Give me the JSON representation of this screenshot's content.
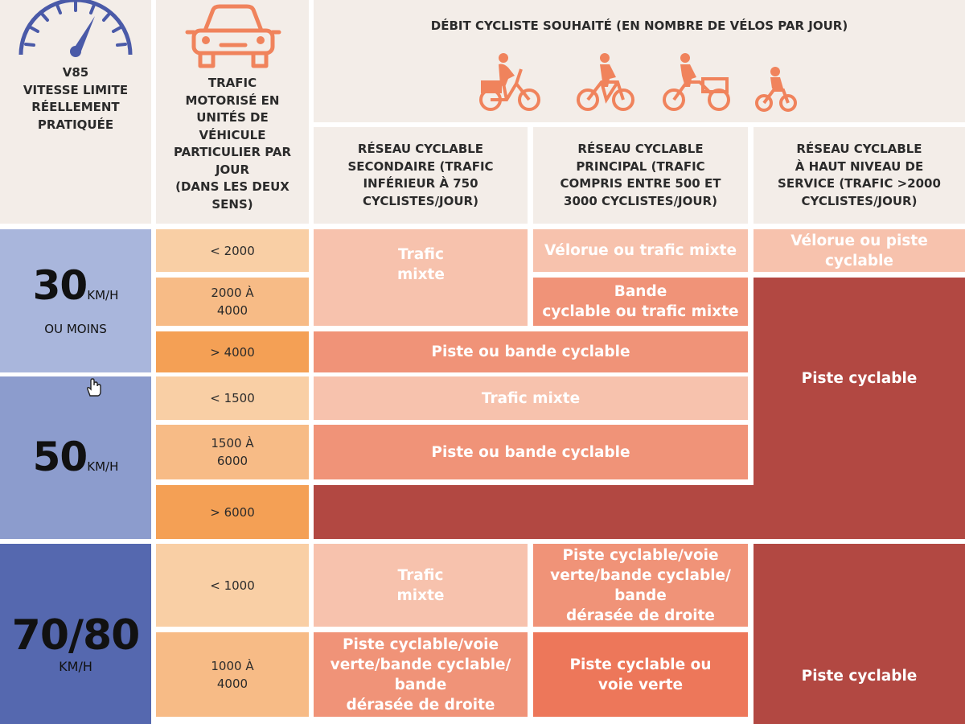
{
  "headers": {
    "v85": "V85\nVITESSE LIMITE\nRÉELLEMENT\nPRATIQUÉE",
    "traffic": "TRAFIC\nMOTORISÉ EN\nUNITÉS DE\nVÉHICULE\nPARTICULIER PAR\nJOUR\n(DANS LES DEUX\nSENS)",
    "debit": "DÉBIT CYCLISTE SOUHAITÉ (EN NOMBRE DE VÉLOS PAR JOUR)",
    "networks": [
      "RÉSEAU CYCLABLE\nSECONDAIRE (TRAFIC\nINFÉRIEUR À 750\nCYCLISTES/JOUR)",
      "RÉSEAU CYCLABLE\nPRINCIPAL (TRAFIC\nCOMPRIS ENTRE 500 ET\n3000 CYCLISTES/JOUR)",
      "RÉSEAU CYCLABLE\nÀ HAUT NIVEAU DE\nSERVICE (TRAFIC >2000\nCYCLISTES/JOUR)"
    ]
  },
  "speeds": [
    {
      "value": "30",
      "unit": "KM/H",
      "sub": "OU MOINS"
    },
    {
      "value": "50",
      "unit": "KM/H"
    },
    {
      "value": "70/80",
      "unit": "KM/H"
    }
  ],
  "traffic_levels": [
    "< 2000",
    "2000 À\n4000",
    "> 4000",
    "< 1500",
    "1500 À\n6000",
    "> 6000",
    "< 1000",
    "1000 À\n4000"
  ],
  "recommendations": {
    "r1_sec": "Trafic\nmixte",
    "r1_pri": "Vélorue ou trafic mixte",
    "r1_hns": "Vélorue ou piste\ncyclable",
    "r2_pri": "Bande\ncyclable ou trafic mixte",
    "r3_sec_pri": "Piste ou bande cyclable",
    "hns_block": "Piste cyclable",
    "r4_sec_pri": "Trafic mixte",
    "r5_sec_pri": "Piste ou bande cyclable",
    "r7_sec": "Trafic\nmixte",
    "r7_pri": "Piste cyclable/voie\nverte/bande cyclable/\nbande\ndérasée de droite",
    "r8_sec": "Piste cyclable/voie\nverte/bande cyclable/\nbande\ndérasée de droite",
    "r8_pri": "Piste cyclable ou\nvoie verte",
    "hns_block2": "Piste cyclable"
  },
  "colors": {
    "header_bg": "#f3ede8",
    "speed_30": "#a9b6dc",
    "speed_50": "#8c9ccd",
    "speed_70": "#5568af",
    "traffic_light": "#f9cfa5",
    "traffic_mid": "#f7bb86",
    "traffic_dark": "#f4a055",
    "rec_light": "#f7c2ad",
    "rec_mid": "#f09378",
    "rec_strong": "#ed775a",
    "rec_dark": "#b24842",
    "icon_orange": "#f0835c",
    "gauge_blue": "#4a5aa8"
  },
  "icons": [
    "speedometer-icon",
    "car-icon",
    "cargo-bike-icon",
    "cyclist-icon",
    "cargo-trike-icon",
    "child-cyclist-icon",
    "hand-cursor-icon"
  ]
}
